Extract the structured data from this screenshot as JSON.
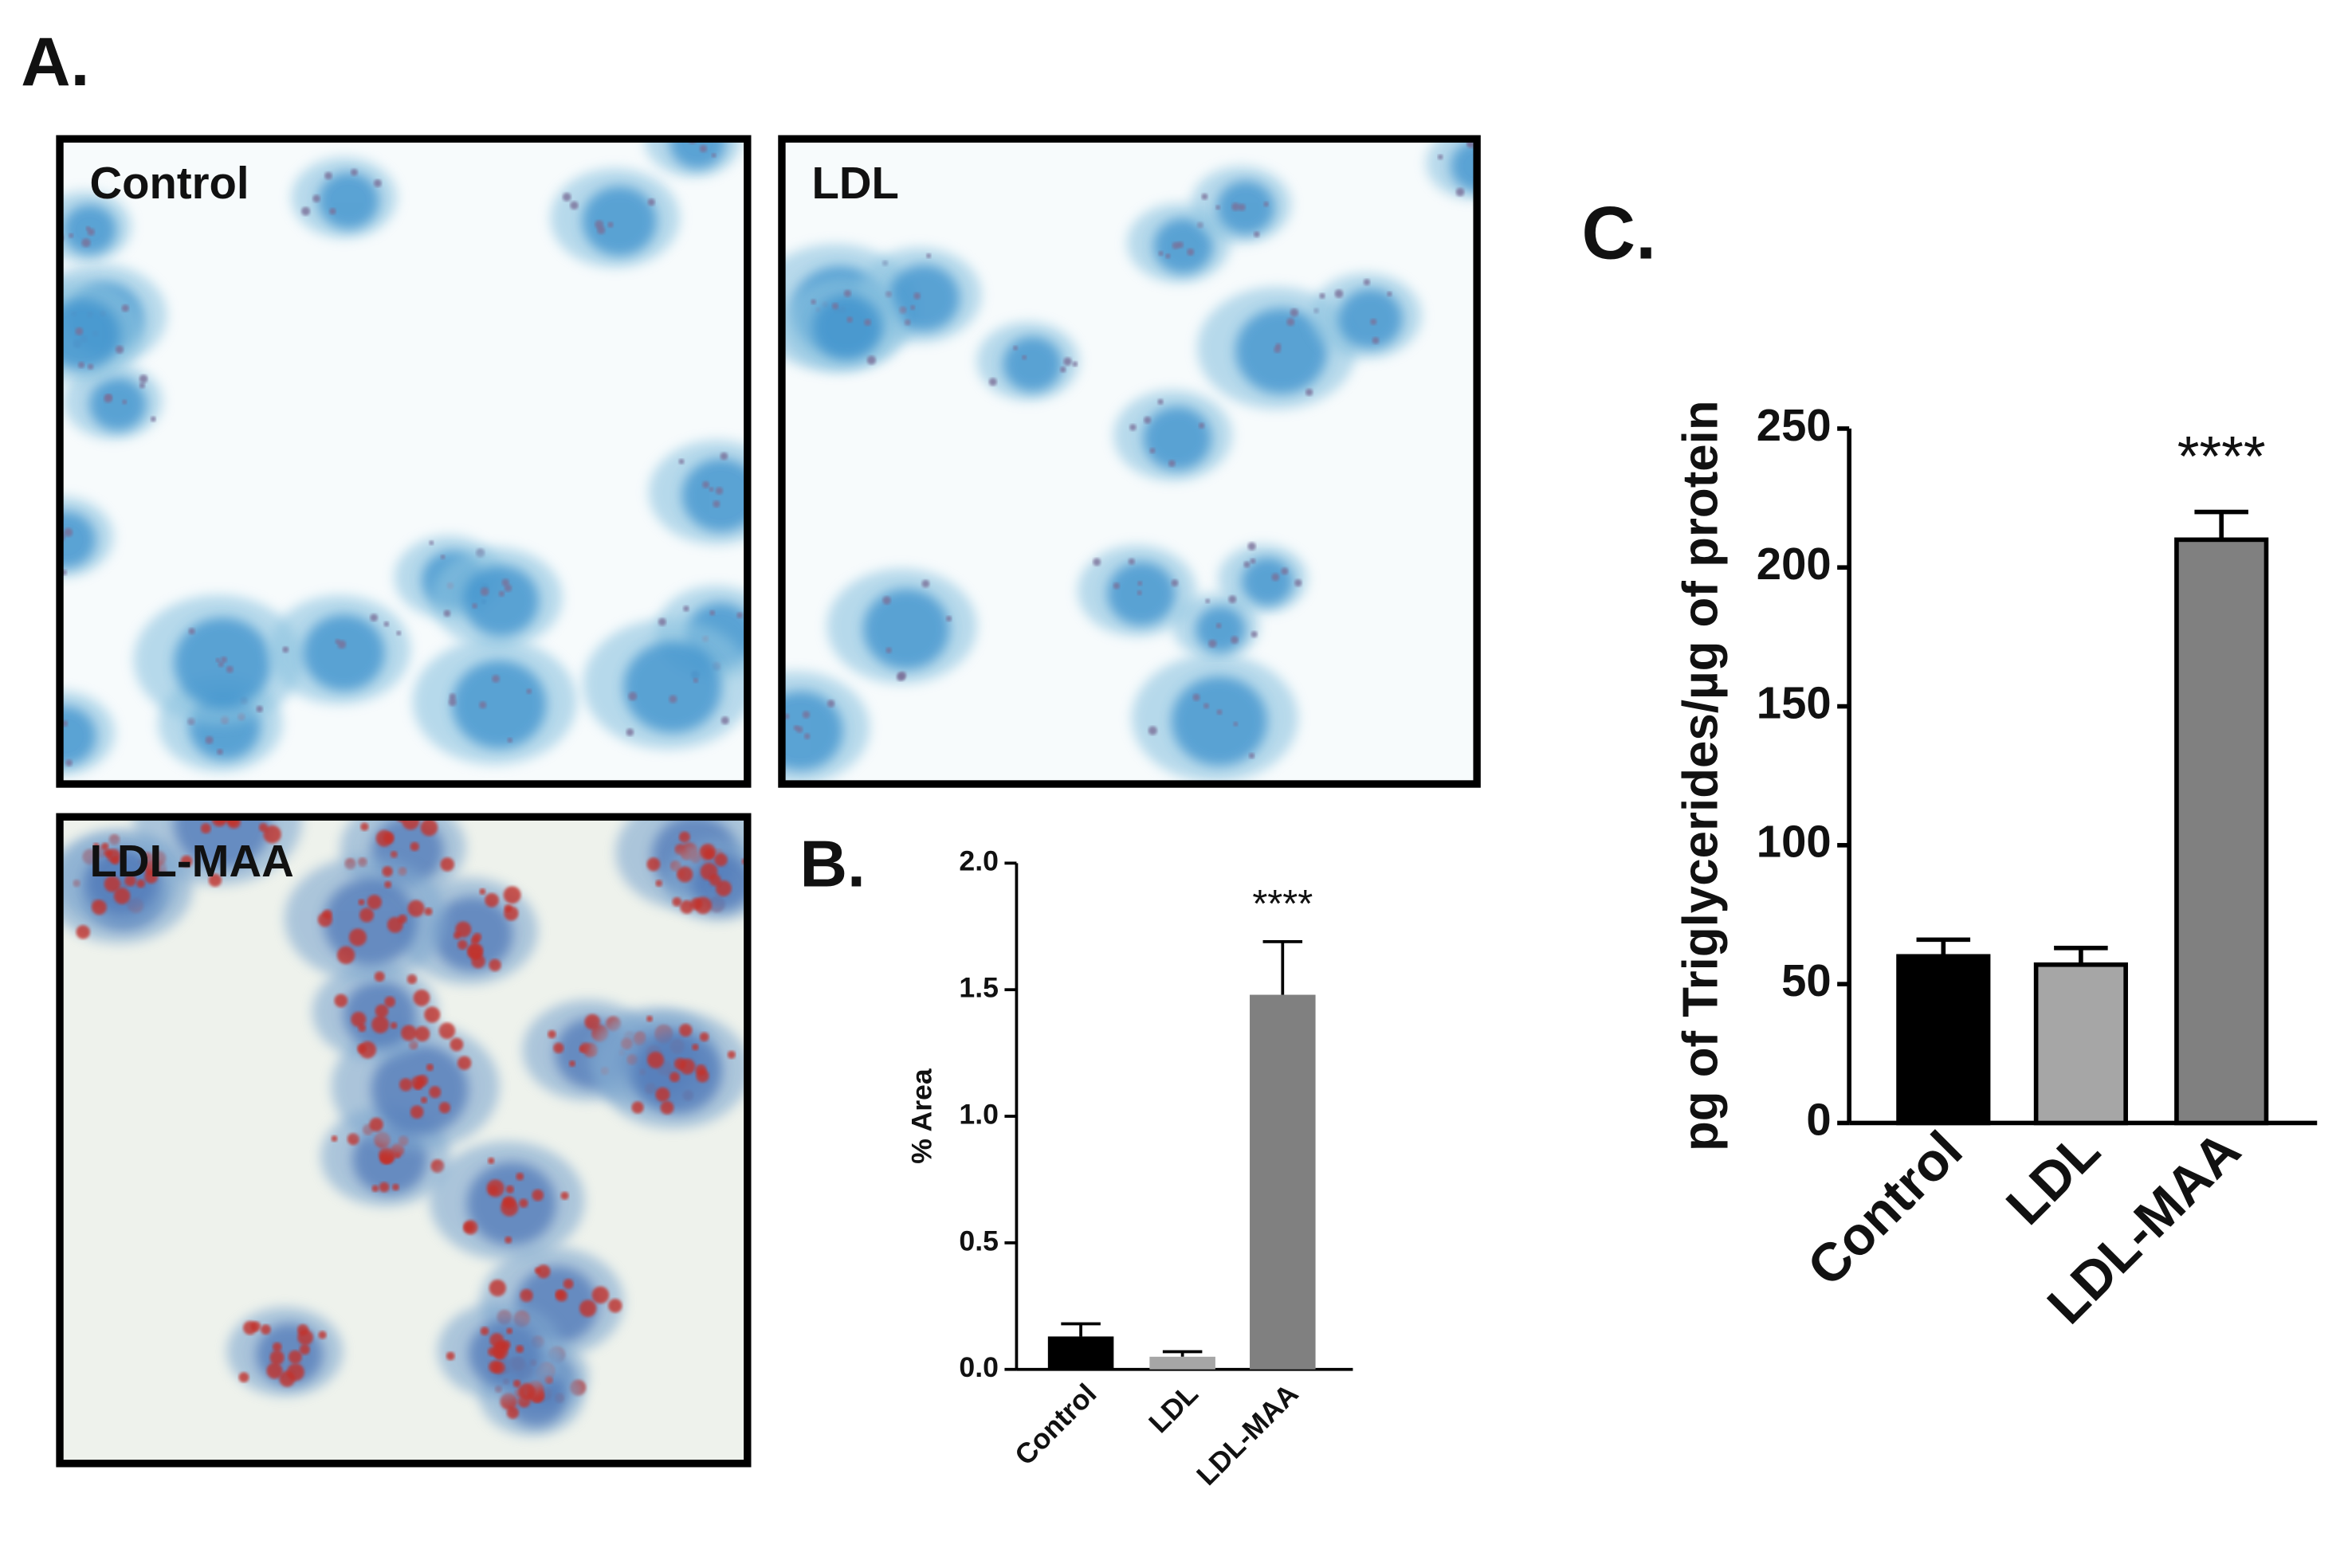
{
  "panels": {
    "label": "A.",
    "images": [
      "Control",
      "LDL",
      "LDL-MAA"
    ]
  },
  "chart_data": [
    {
      "type": "bar",
      "panel_label": "B.",
      "y_label": "% Area",
      "categories": [
        "Control",
        "LDL",
        "LDL-MAA"
      ],
      "values": [
        0.13,
        0.05,
        1.48
      ],
      "errors": [
        0.05,
        0.02,
        0.21
      ],
      "colors": [
        "#000000",
        "#a6a6a6",
        "#808080"
      ],
      "annotations": [
        null,
        null,
        "****"
      ],
      "ylim": [
        0,
        2
      ],
      "yticks": [
        {
          "value": 0,
          "label": "0.0"
        },
        {
          "value": 0.5,
          "label": "0.5"
        },
        {
          "value": 1,
          "label": "1.0"
        },
        {
          "value": 1.5,
          "label": "1.5"
        },
        {
          "value": 2,
          "label": "2.0"
        }
      ]
    },
    {
      "type": "bar",
      "panel_label": "C.",
      "y_label": "pg of Triglycerides/µg of protein",
      "categories": [
        "Control",
        "LDL",
        "LDL-MAA"
      ],
      "values": [
        60,
        57,
        210
      ],
      "errors": [
        6,
        6,
        10
      ],
      "colors": [
        "#000000",
        "#a6a6a6",
        "#808080"
      ],
      "annotations": [
        null,
        null,
        "****"
      ],
      "ylim": [
        0,
        250
      ],
      "yticks": [
        0,
        50,
        100,
        150,
        200,
        250
      ]
    }
  ]
}
